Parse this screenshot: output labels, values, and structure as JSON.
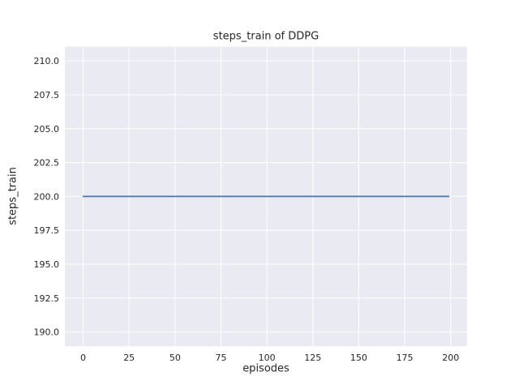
{
  "chart_data": {
    "type": "line",
    "title": "steps_train of DDPG",
    "xlabel": "episodes",
    "ylabel": "steps_train",
    "xlim": [
      -9.95,
      208.95
    ],
    "ylim": [
      188.95,
      211.05
    ],
    "xticks": [
      0,
      25,
      50,
      75,
      100,
      125,
      150,
      175,
      200
    ],
    "yticks": [
      190.0,
      192.5,
      195.0,
      197.5,
      200.0,
      202.5,
      205.0,
      207.5,
      210.0
    ],
    "ytick_decimals": 1,
    "grid": true,
    "legend_position": "none",
    "series": [
      {
        "name": "steps_train",
        "constant_value": 200,
        "x_start": 0,
        "x_end": 199,
        "points": [
          [
            0,
            200
          ],
          [
            199,
            200
          ]
        ],
        "color": "#4c72b0",
        "line_width": 1.8
      }
    ],
    "colors": {
      "figure_bg": "#ffffff",
      "plot_bg": "#eaeaf2",
      "grid": "#ffffff",
      "text": "#262626"
    }
  }
}
